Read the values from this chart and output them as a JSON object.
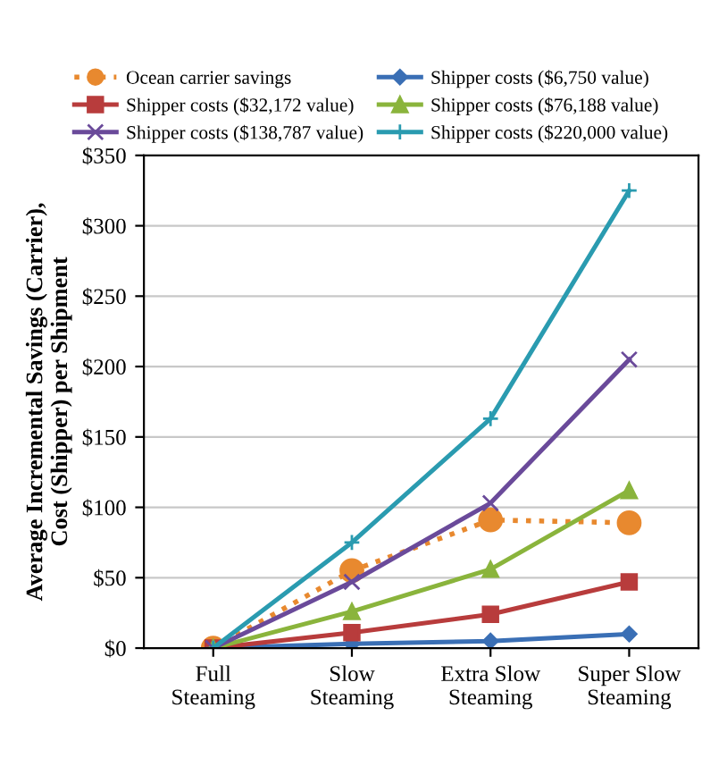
{
  "chart_data": {
    "type": "line",
    "ylabel": "Average Incremental Savings (Carrier),\nCost (Shipper) per Shipment",
    "categories": [
      "Full\nSteaming",
      "Slow\nSteaming",
      "Extra Slow\nSteaming",
      "Super Slow\nSteaming"
    ],
    "ylim": [
      0,
      350
    ],
    "yticks": [
      {
        "value": 0,
        "label": "$0"
      },
      {
        "value": 50,
        "label": "$50"
      },
      {
        "value": 100,
        "label": "$100"
      },
      {
        "value": 150,
        "label": "$150"
      },
      {
        "value": 200,
        "label": "$200"
      },
      {
        "value": 250,
        "label": "$250"
      },
      {
        "value": 300,
        "label": "$300"
      },
      {
        "value": 350,
        "label": "$350"
      }
    ],
    "grid": "y",
    "legend": "top",
    "series": [
      {
        "name": "Ocean carrier savings",
        "color": "#e8892f",
        "values": [
          0,
          55,
          91,
          89
        ],
        "marker": "circle",
        "line_style": "dotted"
      },
      {
        "name": "Shipper costs ($6,750 value)",
        "color": "#3a6fb5",
        "values": [
          0,
          3,
          5,
          10
        ],
        "marker": "diamond",
        "line_style": "solid"
      },
      {
        "name": "Shipper costs ($32,172 value)",
        "color": "#b83c3c",
        "values": [
          0,
          11,
          24,
          47
        ],
        "marker": "square",
        "line_style": "solid"
      },
      {
        "name": "Shipper costs ($76,188 value)",
        "color": "#8ab43c",
        "values": [
          0,
          26,
          56,
          112
        ],
        "marker": "triangle",
        "line_style": "solid"
      },
      {
        "name": "Shipper costs ($138,787 value)",
        "color": "#6a4a9a",
        "values": [
          0,
          47,
          103,
          205
        ],
        "marker": "cross",
        "line_style": "solid"
      },
      {
        "name": "Shipper costs ($220,000 value)",
        "color": "#2a9bb0",
        "values": [
          0,
          75,
          163,
          325
        ],
        "marker": "cross",
        "line_style": "solid"
      }
    ]
  }
}
